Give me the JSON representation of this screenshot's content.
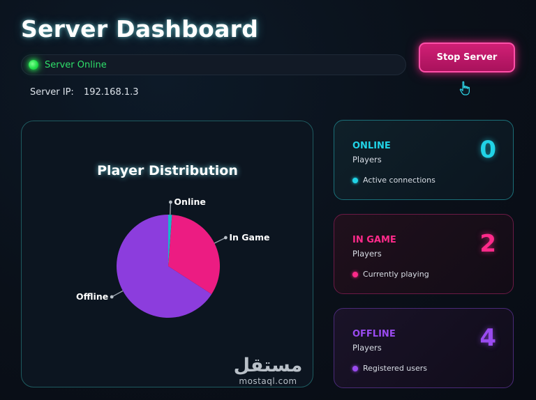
{
  "header": {
    "title": "Server Dashboard"
  },
  "status": {
    "text": "Server Online",
    "color": "#22e04a",
    "indicator_icon": "status-dot-icon"
  },
  "controls": {
    "stop_label": "Stop Server",
    "accent": "#d11f75"
  },
  "server": {
    "ip_label": "Server IP:",
    "ip_value": "192.168.1.3"
  },
  "chart_data": {
    "type": "pie",
    "title": "Player Distribution",
    "categories": [
      "Online",
      "In Game",
      "Offline"
    ],
    "values": [
      0,
      2,
      4
    ],
    "colors": [
      "#19b7c9",
      "#ec1c82",
      "#8c3ddd"
    ],
    "legend": "labels on slices"
  },
  "cards": [
    {
      "key": "online",
      "label": "ONLINE",
      "sub": "Players",
      "value": "0",
      "desc": "Active connections",
      "color": "#21d3e6"
    },
    {
      "key": "ingame",
      "label": "IN GAME",
      "sub": "Players",
      "value": "2",
      "desc": "Currently playing",
      "color": "#ff2a8a"
    },
    {
      "key": "offline",
      "label": "OFFLINE",
      "sub": "Players",
      "value": "4",
      "desc": "Registered users",
      "color": "#9a4bf0"
    }
  ],
  "watermark": {
    "arabic": "مستقل",
    "latin": "mostaql.com"
  },
  "cursor": {
    "icon": "hand-pointer-icon"
  }
}
